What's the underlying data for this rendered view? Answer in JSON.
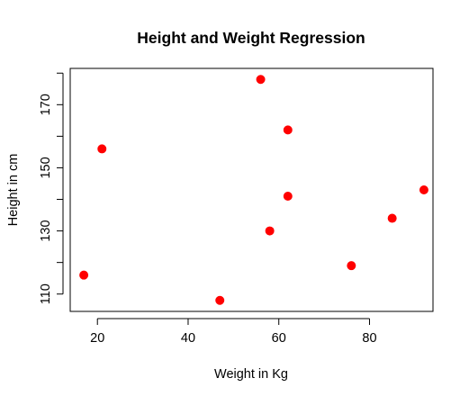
{
  "chart_data": {
    "type": "scatter",
    "title": "Height and Weight Regression",
    "xlabel": "Weight in Kg",
    "ylabel": "Height in cm",
    "xlim": [
      14.0,
      94.0
    ],
    "ylim": [
      104.5,
      181.5
    ],
    "x_ticks": [
      20,
      40,
      60,
      80
    ],
    "y_ticks": [
      110,
      120,
      130,
      140,
      150,
      160,
      170,
      180
    ],
    "y_tick_labels": [
      "110",
      "",
      "130",
      "",
      "150",
      "",
      "170",
      ""
    ],
    "grid": false,
    "point_color": "#ff0000",
    "points": [
      {
        "x": 17,
        "y": 116
      },
      {
        "x": 21,
        "y": 156
      },
      {
        "x": 47,
        "y": 108
      },
      {
        "x": 56,
        "y": 178
      },
      {
        "x": 58,
        "y": 130
      },
      {
        "x": 62,
        "y": 162
      },
      {
        "x": 62,
        "y": 141
      },
      {
        "x": 76,
        "y": 119
      },
      {
        "x": 85,
        "y": 134
      },
      {
        "x": 92,
        "y": 143
      }
    ]
  }
}
